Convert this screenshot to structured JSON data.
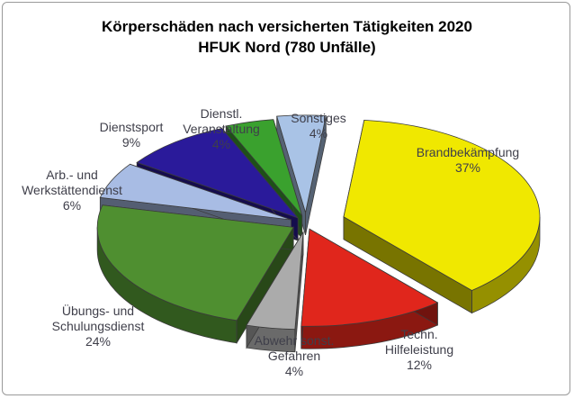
{
  "chart_data": {
    "type": "pie",
    "title": "Körperschäden nach versicherten Tätigkeiten 2020",
    "subtitle": "HFUK Nord (780 Unfälle)",
    "slices": [
      {
        "label_lines": [
          "Brandbekämpfung"
        ],
        "pct_text": "37%",
        "value": 37,
        "color": "#f0e800"
      },
      {
        "label_lines": [
          "Techn.",
          "Hilfeleistung"
        ],
        "pct_text": "12%",
        "value": 12,
        "color": "#e0261c"
      },
      {
        "label_lines": [
          "Abwehr sonst.",
          "Gefahren"
        ],
        "pct_text": "4%",
        "value": 4,
        "color": "#ababab"
      },
      {
        "label_lines": [
          "Übungs- und",
          "Schulungsdienst"
        ],
        "pct_text": "24%",
        "value": 24,
        "color": "#4f8f30"
      },
      {
        "label_lines": [
          "Arb.- und",
          "Werkstättendienst"
        ],
        "pct_text": "6%",
        "value": 6,
        "color": "#a8bce4"
      },
      {
        "label_lines": [
          "Dienstsport"
        ],
        "pct_text": "9%",
        "value": 9,
        "color": "#2a1a9a"
      },
      {
        "label_lines": [
          "Dienstl.",
          "Veranstaltung"
        ],
        "pct_text": "4%",
        "value": 4,
        "color": "#3aa12e"
      },
      {
        "label_lines": [
          "Sonstiges"
        ],
        "pct_text": "4%",
        "value": 4,
        "color": "#a9c3e6"
      }
    ]
  }
}
